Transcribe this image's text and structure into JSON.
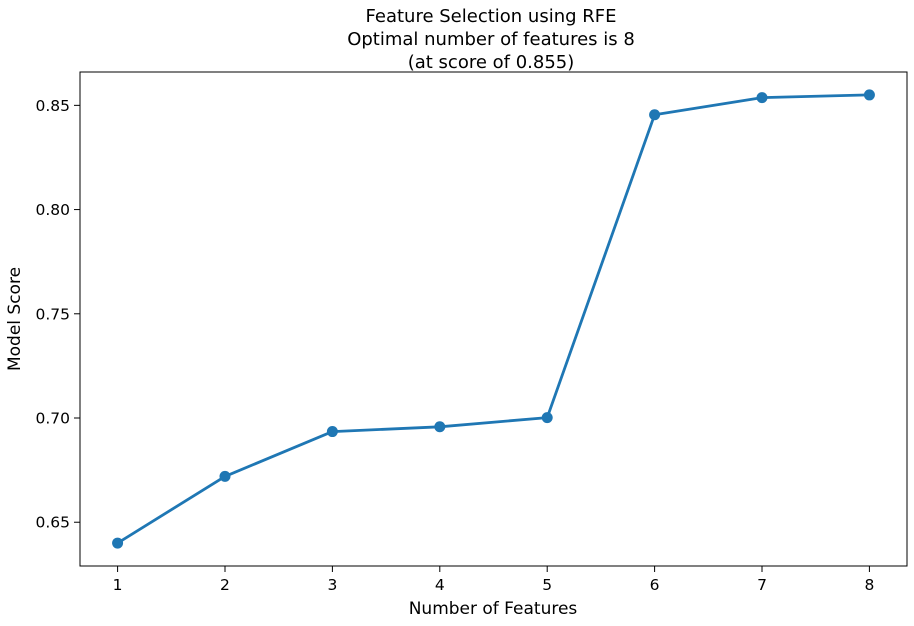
{
  "chart_data": {
    "type": "line",
    "title_lines": [
      "Feature Selection using RFE",
      "Optimal number of features is 8",
      "(at score of 0.855)"
    ],
    "xlabel": "Number of Features",
    "ylabel": "Model Score",
    "x": [
      1,
      2,
      3,
      4,
      5,
      6,
      7,
      8
    ],
    "y": [
      0.64,
      0.672,
      0.6935,
      0.6958,
      0.7002,
      0.8455,
      0.8537,
      0.855
    ],
    "xticks": [
      1,
      2,
      3,
      4,
      5,
      6,
      7,
      8
    ],
    "yticks": [
      0.65,
      0.7,
      0.75,
      0.8,
      0.85
    ],
    "ytick_labels": [
      "0.65",
      "0.70",
      "0.75",
      "0.80",
      "0.85"
    ],
    "xlim": [
      0.65,
      8.35
    ],
    "ylim": [
      0.629,
      0.866
    ],
    "grid": false,
    "legend": "none",
    "line_color": "#1f77b4",
    "marker": "circle"
  }
}
